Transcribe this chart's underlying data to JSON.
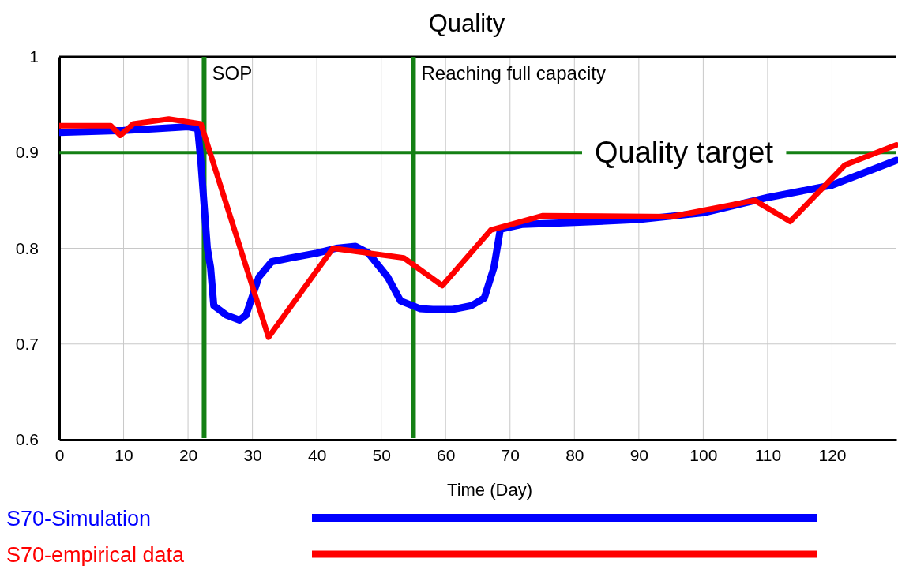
{
  "chart_data": {
    "type": "line",
    "title": "Quality",
    "xlabel": "Time (Day)",
    "xlim": [
      0,
      130
    ],
    "xticks": [
      0,
      10,
      20,
      30,
      40,
      50,
      60,
      70,
      80,
      90,
      100,
      110,
      120
    ],
    "ylim": [
      0.6,
      1.0
    ],
    "yticks": [
      0.6,
      0.7,
      0.8,
      0.9,
      {
        "value": 1.0,
        "label": "1"
      }
    ],
    "grid": true,
    "legend": "bottom",
    "line_style": "solid",
    "marker": "none",
    "series": [
      {
        "name": "S70-Simulation",
        "color": "#0000ff",
        "x": [
          0,
          5,
          10,
          15,
          20,
          21.5,
          22,
          23,
          23.5,
          24,
          26,
          28,
          29,
          31,
          33,
          36,
          40,
          43,
          46,
          48,
          51,
          53,
          56,
          58,
          61,
          64,
          66,
          67.5,
          68.5,
          72,
          80,
          90,
          100,
          110,
          120,
          130
        ],
        "values": [
          0.921,
          0.922,
          0.923,
          0.925,
          0.927,
          0.925,
          0.89,
          0.8,
          0.78,
          0.74,
          0.73,
          0.725,
          0.73,
          0.77,
          0.786,
          0.79,
          0.795,
          0.8,
          0.802,
          0.795,
          0.77,
          0.745,
          0.737,
          0.736,
          0.736,
          0.74,
          0.748,
          0.78,
          0.82,
          0.825,
          0.827,
          0.83,
          0.837,
          0.853,
          0.866,
          0.892
        ]
      },
      {
        "name": "S70-empirical data",
        "color": "#ff0000",
        "x": [
          0,
          8,
          9.5,
          11.5,
          17,
          22,
          32.5,
          42.5,
          53.5,
          59.5,
          67,
          75,
          95,
          108,
          113.5,
          122,
          130
        ],
        "values": [
          0.928,
          0.928,
          0.918,
          0.93,
          0.935,
          0.93,
          0.707,
          0.8,
          0.79,
          0.761,
          0.819,
          0.834,
          0.833,
          0.85,
          0.828,
          0.887,
          0.908
        ]
      }
    ],
    "ref_lines": [
      {
        "axis": "x",
        "value": 22.5,
        "label": "SOP",
        "color": "#148014"
      },
      {
        "axis": "x",
        "value": 55,
        "label": "Reaching full capacity",
        "color": "#148014"
      },
      {
        "axis": "y",
        "value": 0.9,
        "label": "Quality target",
        "color": "#148014"
      }
    ]
  }
}
